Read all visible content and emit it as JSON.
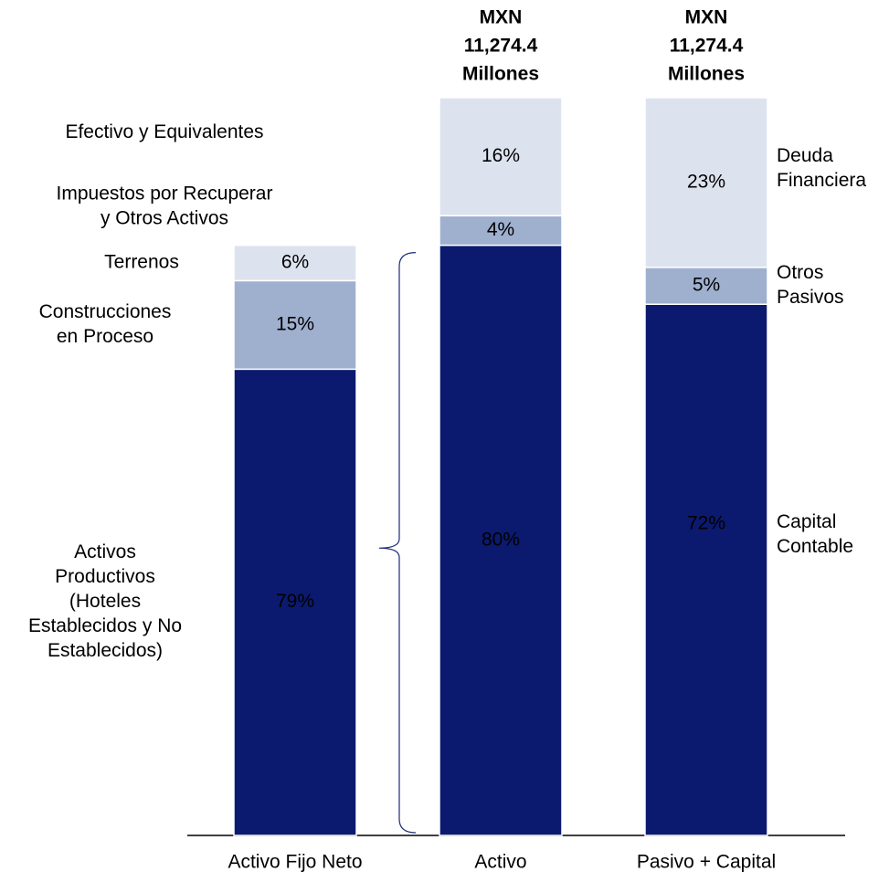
{
  "chart_data": {
    "type": "bar",
    "stacked": true,
    "ylim": [
      0,
      100
    ],
    "bars": [
      {
        "category": "Activo Fijo Neto",
        "segments": [
          {
            "name": [
              "Activos",
              "Productivos",
              "(Hoteles",
              "Establecidos y No",
              "Establecidos)"
            ],
            "value": 79,
            "value_label": "79%",
            "color": "#0b1a6e"
          },
          {
            "name": [
              "Construcciones",
              "en Proceso"
            ],
            "value": 15,
            "value_label": "15%",
            "color": "#9fb0cf"
          },
          {
            "name": [
              "Terrenos"
            ],
            "value": 6,
            "value_label": "6%",
            "color": "#dde3ee"
          }
        ]
      },
      {
        "category": "Activo",
        "header": [
          "MXN",
          "11,274.4",
          "Millones"
        ],
        "segments": [
          {
            "value": 80,
            "value_label": "80%",
            "color": "#0b1a6e"
          },
          {
            "name": [
              "Impuestos por Recuperar",
              "y Otros Activos"
            ],
            "value": 4,
            "value_label": "4%",
            "color": "#9fb0cf"
          },
          {
            "name": [
              "Efectivo y Equivalentes"
            ],
            "value": 16,
            "value_label": "16%",
            "color": "#dde3ee"
          }
        ]
      },
      {
        "category": "Pasivo + Capital",
        "header": [
          "MXN",
          "11,274.4",
          "Millones"
        ],
        "segments": [
          {
            "name": [
              "Capital",
              "Contable"
            ],
            "value": 72,
            "value_label": "72%",
            "color": "#0b1a6e"
          },
          {
            "name": [
              "Otros",
              "Pasivos"
            ],
            "value": 5,
            "value_label": "5%",
            "color": "#9fb0cf"
          },
          {
            "name": [
              "Deuda",
              "Financiera"
            ],
            "value": 23,
            "value_label": "23%",
            "color": "#dde3ee"
          }
        ]
      }
    ]
  }
}
